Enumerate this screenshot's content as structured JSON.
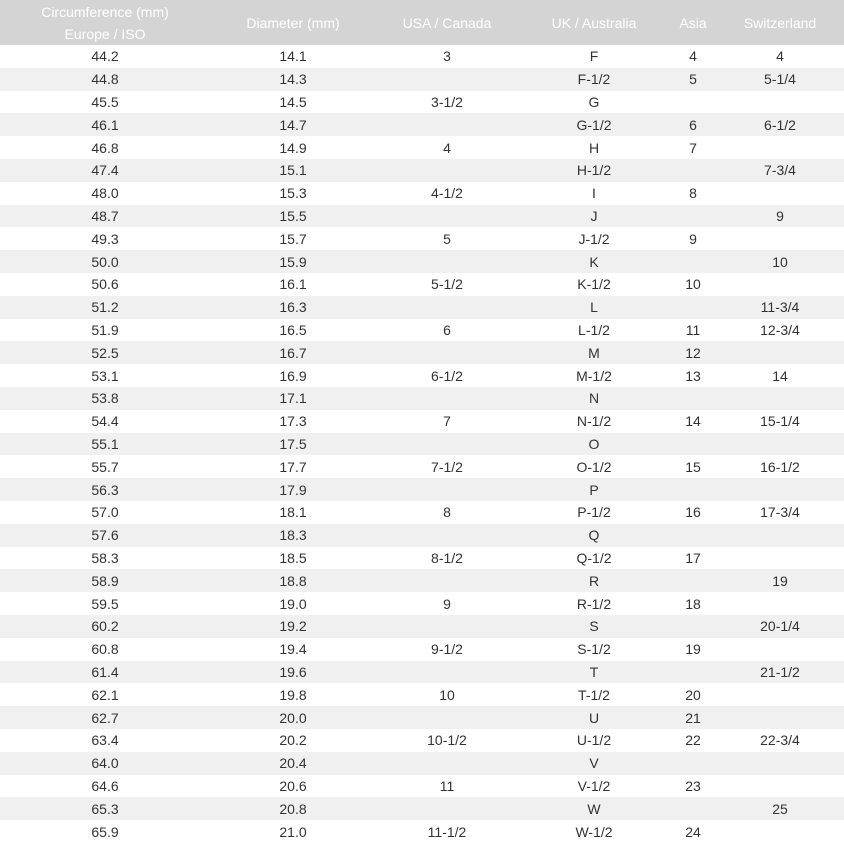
{
  "table": {
    "header": [
      [
        "Circumference (mm)",
        "Europe / ISO"
      ],
      "Diameter (mm)",
      "USA / Canada",
      "UK / Australia",
      "Asia",
      "Switzerland"
    ],
    "rows": [
      [
        "44.2",
        "14.1",
        "3",
        "F",
        "4",
        "4"
      ],
      [
        "44.8",
        "14.3",
        null,
        "F-1/2",
        "5",
        "5-1/4"
      ],
      [
        "45.5",
        "14.5",
        "3-1/2",
        "G",
        null,
        null
      ],
      [
        "46.1",
        "14.7",
        null,
        "G-1/2",
        "6",
        "6-1/2"
      ],
      [
        "46.8",
        "14.9",
        "4",
        "H",
        "7",
        null
      ],
      [
        "47.4",
        "15.1",
        null,
        "H-1/2",
        null,
        "7-3/4"
      ],
      [
        "48.0",
        "15.3",
        "4-1/2",
        "I",
        "8",
        null
      ],
      [
        "48.7",
        "15.5",
        null,
        "J",
        null,
        "9"
      ],
      [
        "49.3",
        "15.7",
        "5",
        "J-1/2",
        "9",
        null
      ],
      [
        "50.0",
        "15.9",
        null,
        "K",
        null,
        "10"
      ],
      [
        "50.6",
        "16.1",
        "5-1/2",
        "K-1/2",
        "10",
        null
      ],
      [
        "51.2",
        "16.3",
        null,
        "L",
        null,
        "11-3/4"
      ],
      [
        "51.9",
        "16.5",
        "6",
        "L-1/2",
        "11",
        "12-3/4"
      ],
      [
        "52.5",
        "16.7",
        null,
        "M",
        "12",
        null
      ],
      [
        "53.1",
        "16.9",
        "6-1/2",
        "M-1/2",
        "13",
        "14"
      ],
      [
        "53.8",
        "17.1",
        null,
        "N",
        null,
        null
      ],
      [
        "54.4",
        "17.3",
        "7",
        "N-1/2",
        "14",
        "15-1/4"
      ],
      [
        "55.1",
        "17.5",
        null,
        "O",
        null,
        null
      ],
      [
        "55.7",
        "17.7",
        "7-1/2",
        "O-1/2",
        "15",
        "16-1/2"
      ],
      [
        "56.3",
        "17.9",
        null,
        "P",
        null,
        null
      ],
      [
        "57.0",
        "18.1",
        "8",
        "P-1/2",
        "16",
        "17-3/4"
      ],
      [
        "57.6",
        "18.3",
        null,
        "Q",
        null,
        null
      ],
      [
        "58.3",
        "18.5",
        "8-1/2",
        "Q-1/2",
        "17",
        null
      ],
      [
        "58.9",
        "18.8",
        null,
        "R",
        null,
        "19"
      ],
      [
        "59.5",
        "19.0",
        "9",
        "R-1/2",
        "18",
        null
      ],
      [
        "60.2",
        "19.2",
        null,
        "S",
        null,
        "20-1/4"
      ],
      [
        "60.8",
        "19.4",
        "9-1/2",
        "S-1/2",
        "19",
        null
      ],
      [
        "61.4",
        "19.6",
        null,
        "T",
        null,
        "21-1/2"
      ],
      [
        "62.1",
        "19.8",
        "10",
        "T-1/2",
        "20",
        null
      ],
      [
        "62.7",
        "20.0",
        null,
        "U",
        "21",
        null
      ],
      [
        "63.4",
        "20.2",
        "10-1/2",
        "U-1/2",
        "22",
        "22-3/4"
      ],
      [
        "64.0",
        "20.4",
        null,
        "V",
        null,
        null
      ],
      [
        "64.6",
        "20.6",
        "11",
        "V-1/2",
        "23",
        null
      ],
      [
        "65.3",
        "20.8",
        null,
        "W",
        null,
        "25"
      ],
      [
        "65.9",
        "21.0",
        "11-1/2",
        "W-1/2",
        "24",
        null
      ]
    ]
  }
}
